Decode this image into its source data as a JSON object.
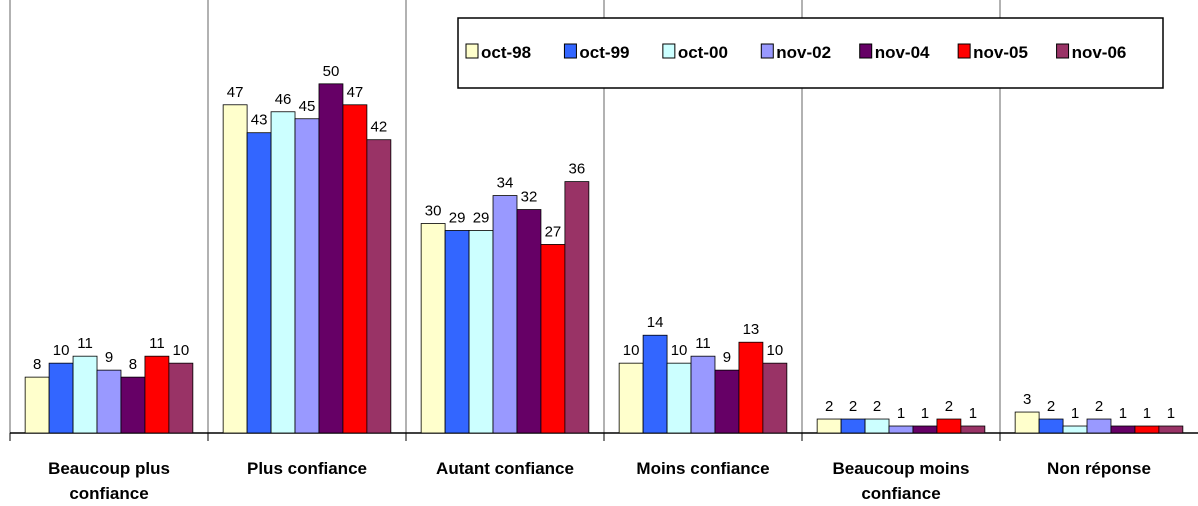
{
  "chart_data": {
    "type": "bar",
    "categories": [
      "Beaucoup plus confiance",
      "Plus confiance",
      "Autant confiance",
      "Moins confiance",
      "Beaucoup moins confiance",
      "Non réponse"
    ],
    "series": [
      {
        "name": "oct-98",
        "color": "#ffffcc",
        "values": [
          8,
          47,
          30,
          10,
          2,
          3
        ]
      },
      {
        "name": "oct-99",
        "color": "#3366ff",
        "values": [
          10,
          43,
          29,
          14,
          2,
          2
        ]
      },
      {
        "name": "oct-00",
        "color": "#ccffff",
        "values": [
          11,
          46,
          29,
          10,
          2,
          1
        ]
      },
      {
        "name": "nov-02",
        "color": "#9999ff",
        "values": [
          9,
          45,
          34,
          11,
          1,
          2
        ]
      },
      {
        "name": "nov-04",
        "color": "#660066",
        "values": [
          8,
          50,
          32,
          9,
          1,
          1
        ]
      },
      {
        "name": "nov-05",
        "color": "#ff0000",
        "values": [
          11,
          47,
          27,
          13,
          2,
          1
        ]
      },
      {
        "name": "nov-06",
        "color": "#993366",
        "values": [
          10,
          42,
          36,
          10,
          1,
          1
        ]
      }
    ],
    "ylim": [
      0,
      60
    ],
    "legend": "top-right",
    "grid": true
  }
}
